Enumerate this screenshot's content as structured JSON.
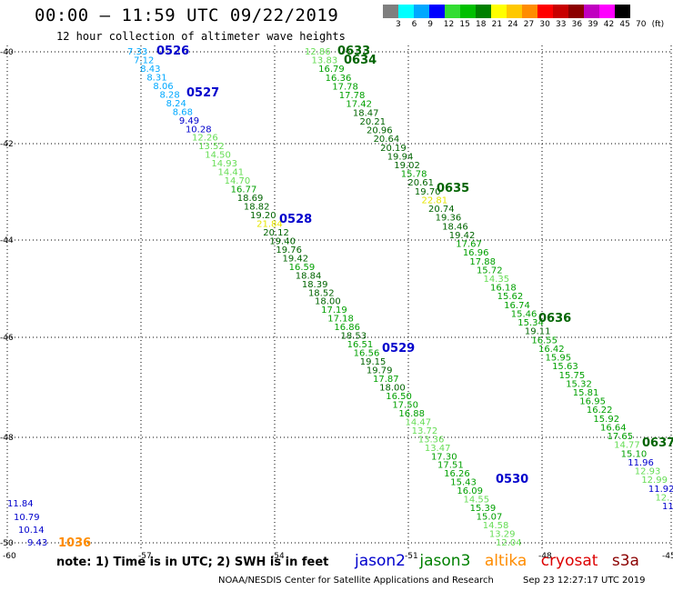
{
  "header": {
    "title": "00:00 – 11:59 UTC 09/22/2019",
    "subtitle": "12 hour collection of altimeter wave heights"
  },
  "colorbar": {
    "colors": [
      "#7f7f7f",
      "#00ffff",
      "#00a8ff",
      "#0000ff",
      "#33dd33",
      "#00c000",
      "#008000",
      "#ffff00",
      "#ffc800",
      "#ff8c00",
      "#ff0000",
      "#c80000",
      "#8b0000",
      "#c000c0",
      "#ff00ff",
      "#000000"
    ],
    "labels": [
      "3",
      "6",
      "9",
      "12",
      "15",
      "18",
      "21",
      "24",
      "27",
      "30",
      "33",
      "36",
      "39",
      "42",
      "45",
      "70",
      "(ft)"
    ]
  },
  "axes": {
    "lat_labels": [
      "-40",
      "-42",
      "-44",
      "-46",
      "-48",
      "-50"
    ],
    "lon_labels": [
      "-60",
      "-57",
      "-54",
      "-51",
      "-48",
      "-45"
    ]
  },
  "passes": [
    {
      "id": "0526",
      "color": "#0000cc"
    },
    {
      "id": "0527",
      "color": "#0000cc"
    },
    {
      "id": "0528",
      "color": "#0000cc"
    },
    {
      "id": "0529",
      "color": "#0000cc"
    },
    {
      "id": "0530",
      "color": "#0000cc"
    },
    {
      "id": "0633",
      "color": "#006400"
    },
    {
      "id": "0634",
      "color": "#006400"
    },
    {
      "id": "0635",
      "color": "#006400"
    },
    {
      "id": "0636",
      "color": "#006400"
    },
    {
      "id": "0637",
      "color": "#006400"
    },
    {
      "id": "1036",
      "color": "#ff8c00"
    }
  ],
  "tracks": [
    {
      "name": "track-a",
      "values": [
        "7.33",
        "7.12",
        "8.43",
        "8.31",
        "8.06",
        "8.28",
        "8.24",
        "8.68",
        "9.49",
        "10.28",
        "12.26",
        "13.52",
        "14.50",
        "14.93",
        "14.41",
        "14.70",
        "16.77",
        "18.69",
        "18.82",
        "19.20",
        "21.84",
        "20.12",
        "19.40",
        "19.76",
        "19.42",
        "16.59",
        "18.84",
        "18.39",
        "18.52",
        "18.00",
        "17.19",
        "17.18",
        "16.86",
        "18.53",
        "16.51",
        "16.56",
        "19.15",
        "19.79",
        "17.87",
        "18.00",
        "16.50",
        "17.50",
        "16.88",
        "14.47",
        "13.72",
        "13.36",
        "13.47",
        "17.30",
        "17.51",
        "16.26",
        "15.43",
        "16.09",
        "14.55",
        "15.39",
        "15.07",
        "14.58",
        "13.29",
        "12.04"
      ]
    },
    {
      "name": "track-b",
      "values": [
        "12.86",
        "13.83",
        "16.79",
        "16.36",
        "17.78",
        "17.78",
        "17.42",
        "18.47",
        "20.21",
        "20.96",
        "20.64",
        "20.19",
        "19.94",
        "19.02",
        "15.78",
        "20.61",
        "19.70",
        "22.81",
        "20.74",
        "19.36",
        "18.46",
        "19.42",
        "17.67",
        "16.96",
        "17.88",
        "15.72",
        "14.35",
        "16.18",
        "15.62",
        "16.74",
        "15.46",
        "15.34",
        "19.11",
        "16.55",
        "16.42",
        "15.95",
        "15.63",
        "15.75",
        "15.32",
        "15.81",
        "16.95",
        "16.22",
        "15.92",
        "16.64",
        "17.65",
        "14.77",
        "15.10",
        "11.96",
        "12.93",
        "12.99",
        "11.92",
        "12.",
        "11"
      ]
    },
    {
      "name": "track-c",
      "values": [
        "11.84",
        "10.79",
        "10.14",
        "9.43"
      ]
    }
  ],
  "footer": {
    "note": "note:  1) Time is in UTC; 2) SWH is in feet",
    "missions": [
      {
        "name": "jason2",
        "color": "#0000cc"
      },
      {
        "name": "jason3",
        "color": "#008000"
      },
      {
        "name": "altika",
        "color": "#ff8c00"
      },
      {
        "name": "cryosat",
        "color": "#dd0000"
      },
      {
        "name": "s3a",
        "color": "#8b0000"
      }
    ],
    "credit": "NOAA/NESDIS Center for Satellite Applications and Research",
    "timestamp": "Sep 23 12:27:17 UTC 2019"
  }
}
